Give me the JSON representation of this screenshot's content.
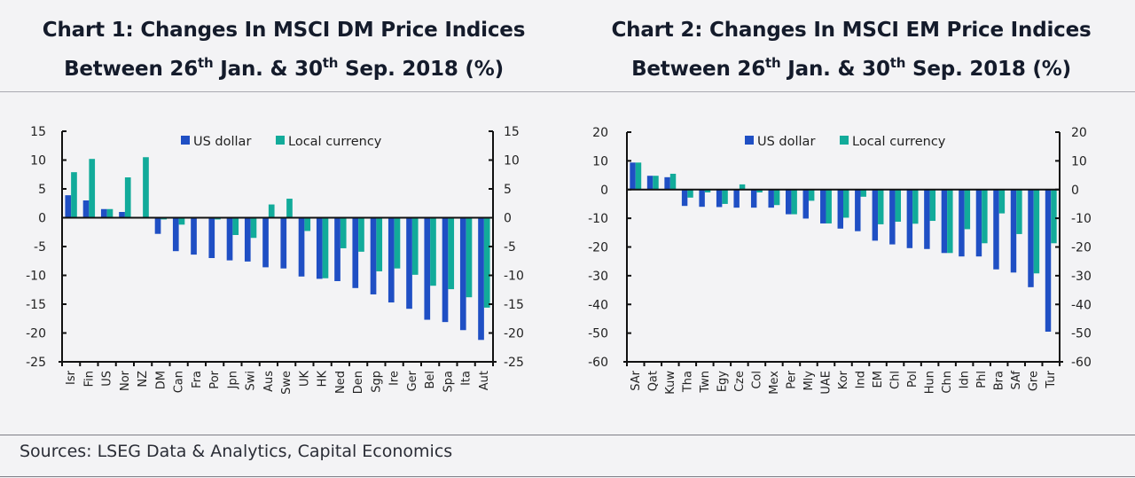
{
  "titles": [
    {
      "line1": "Chart 1: Changes In MSCI DM Price Indices",
      "line2_pre": "Between 26",
      "sup1": "th",
      "line2_mid": " Jan. & 30",
      "sup2": "th",
      "line2_post": " Sep. 2018 (%)"
    },
    {
      "line1": "Chart 2: Changes In MSCI EM Price Indices",
      "line2_pre": "Between 26",
      "sup1": "th",
      "line2_mid": " Jan. & 30",
      "sup2": "th",
      "line2_post": " Sep. 2018 (%)"
    }
  ],
  "source": "Sources: LSEG Data & Analytics, Capital Economics",
  "colors": {
    "usd": "#1f4fc4",
    "local": "#12ab9a",
    "axis": "#111111"
  },
  "chart_data": [
    {
      "type": "bar",
      "title": "Chart 1: Changes In MSCI DM Price Indices Between 26th Jan. & 30th Sep. 2018 (%)",
      "xlabel": "",
      "ylabel": "%",
      "ylim": [
        -25,
        15
      ],
      "yticks": [
        15,
        10,
        5,
        0,
        -5,
        -10,
        -15,
        -20,
        -25
      ],
      "dual_y_axis": true,
      "legend": "top-center",
      "grid": false,
      "categories": [
        "Isr",
        "Fin",
        "US",
        "Nor",
        "NZ",
        "DM",
        "Can",
        "Fra",
        "Por",
        "Jpn",
        "Swi",
        "Aus",
        "Swe",
        "UK",
        "HK",
        "Ned",
        "Den",
        "Sgp",
        "Ire",
        "Ger",
        "Bel",
        "Spa",
        "Ita",
        "Aut"
      ],
      "series": [
        {
          "name": "US dollar",
          "values": [
            3.9,
            3.0,
            1.5,
            1.0,
            0.0,
            -2.8,
            -5.8,
            -6.4,
            -7.0,
            -7.4,
            -7.6,
            -8.6,
            -8.8,
            -10.2,
            -10.6,
            -11.0,
            -12.2,
            -13.3,
            -14.7,
            -15.8,
            -17.7,
            -18.1,
            -19.5,
            -21.2
          ]
        },
        {
          "name": "Local currency",
          "values": [
            7.9,
            10.2,
            1.5,
            7.0,
            10.5,
            -0.3,
            -1.2,
            -0.1,
            -0.3,
            -3.0,
            -3.5,
            2.3,
            3.3,
            -2.3,
            -10.5,
            -5.3,
            -5.9,
            -9.3,
            -8.8,
            -9.9,
            -11.8,
            -12.4,
            -13.8,
            -15.6
          ]
        }
      ]
    },
    {
      "type": "bar",
      "title": "Chart 2: Changes In MSCI EM Price Indices Between 26th Jan. & 30th Sep. 2018 (%)",
      "xlabel": "",
      "ylabel": "%",
      "ylim": [
        -60,
        20
      ],
      "yticks": [
        20,
        10,
        0,
        -10,
        -20,
        -30,
        -40,
        -50,
        -60
      ],
      "dual_y_axis": true,
      "legend": "top-center",
      "grid": false,
      "categories": [
        "SAr",
        "Qat",
        "Kuw",
        "Tha",
        "Twn",
        "Egy",
        "Cze",
        "Col",
        "Mex",
        "Per",
        "Mly",
        "UAE",
        "Kor",
        "Ind",
        "EM",
        "Chl",
        "Pol",
        "Hun",
        "Chn",
        "Idn",
        "Phl",
        "Bra",
        "SAf",
        "Gre",
        "Tur"
      ],
      "series": [
        {
          "name": "US dollar",
          "values": [
            9.4,
            4.8,
            4.3,
            -5.7,
            -6.0,
            -6.1,
            -6.3,
            -6.3,
            -6.3,
            -8.6,
            -10.1,
            -11.8,
            -13.6,
            -14.5,
            -17.8,
            -19.1,
            -20.4,
            -20.7,
            -22.1,
            -23.3,
            -23.3,
            -27.8,
            -28.9,
            -34.0,
            -49.5
          ]
        },
        {
          "name": "Local currency",
          "values": [
            9.4,
            4.8,
            5.5,
            -2.8,
            -1.0,
            -5.0,
            1.8,
            -1.0,
            -5.4,
            -8.6,
            -3.9,
            -11.8,
            -9.8,
            -2.5,
            -12.1,
            -11.2,
            -11.9,
            -10.9,
            -22.1,
            -13.8,
            -18.7,
            -8.3,
            -15.5,
            -29.2,
            -18.7
          ]
        }
      ]
    }
  ]
}
